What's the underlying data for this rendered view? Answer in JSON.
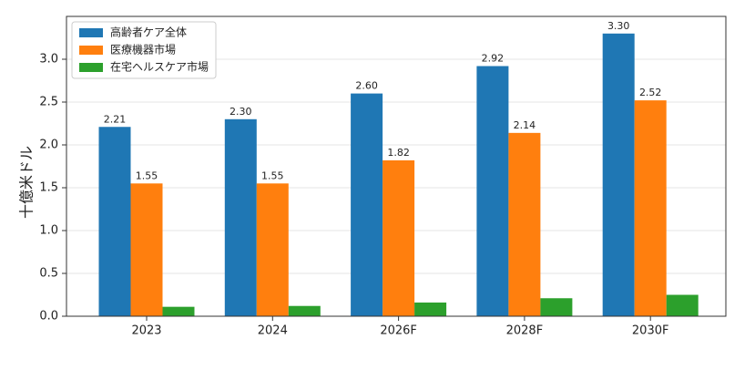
{
  "chart_data": {
    "type": "bar",
    "y_label": "十億米ドル",
    "categories": [
      "2023",
      "2024",
      "2026F",
      "2028F",
      "2030F"
    ],
    "series": [
      {
        "name": "高齢者ケア全体",
        "color": "#1f77b4",
        "values": [
          2.21,
          2.3,
          2.6,
          2.92,
          3.3
        ],
        "value_labels": [
          "2.21",
          "2.30",
          "2.60",
          "2.92",
          "3.30"
        ]
      },
      {
        "name": "医療機器市場",
        "color": "#ff7f0e",
        "values": [
          1.55,
          1.55,
          1.82,
          2.14,
          2.52
        ],
        "value_labels": [
          "1.55",
          "1.55",
          "1.82",
          "2.14",
          "2.52"
        ]
      },
      {
        "name": "在宅ヘルスケア市場",
        "color": "#2ca02c",
        "values": [
          0.11,
          0.12,
          0.16,
          0.21,
          0.25
        ]
      }
    ],
    "ylim": [
      0,
      3.5
    ],
    "yticks": [
      {
        "value": 0,
        "label": "0.0"
      },
      {
        "value": 0.5,
        "label": "0.5"
      },
      {
        "value": 1,
        "label": "1.0"
      },
      {
        "value": 1.5,
        "label": "1.5"
      },
      {
        "value": 2,
        "label": "2.0"
      },
      {
        "value": 2.5,
        "label": "2.5"
      },
      {
        "value": 3,
        "label": "3.0"
      }
    ],
    "grid": true,
    "legend": "upper-left"
  }
}
